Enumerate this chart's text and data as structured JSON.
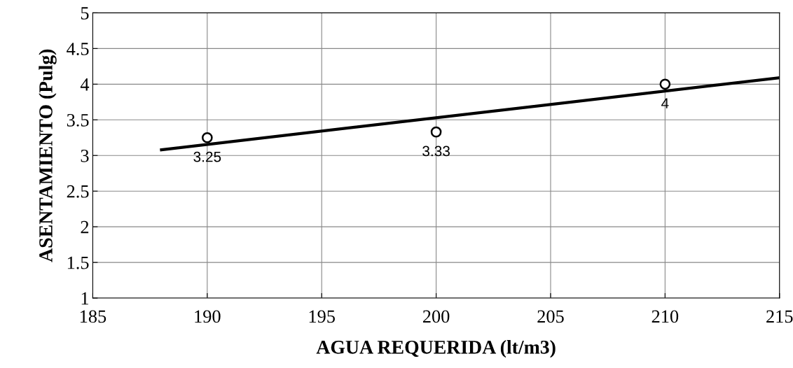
{
  "chart_data": {
    "type": "scatter",
    "xlabel": "AGUA REQUERIDA (lt/m3)",
    "ylabel": "ASENTAMIENTO (Pulg)",
    "xlim": [
      185,
      215
    ],
    "xticks": [
      185,
      190,
      195,
      200,
      205,
      210,
      215
    ],
    "ylim": [
      1,
      5
    ],
    "yticks": [
      1,
      1.5,
      2,
      2.5,
      3,
      3.5,
      4,
      4.5,
      5
    ],
    "grid": true,
    "series": [
      {
        "color": "#000000",
        "marker": "circle",
        "x": [
          190,
          200,
          210
        ],
        "values": [
          3.25,
          3.33,
          4
        ],
        "value_labels": [
          "3.25",
          "3.33",
          "4"
        ]
      },
      {
        "type": "line",
        "color": "#000000",
        "marker": "none",
        "line_style": "solid",
        "x": [
          188,
          215
        ],
        "values": [
          3.08,
          4.09
        ]
      }
    ]
  }
}
